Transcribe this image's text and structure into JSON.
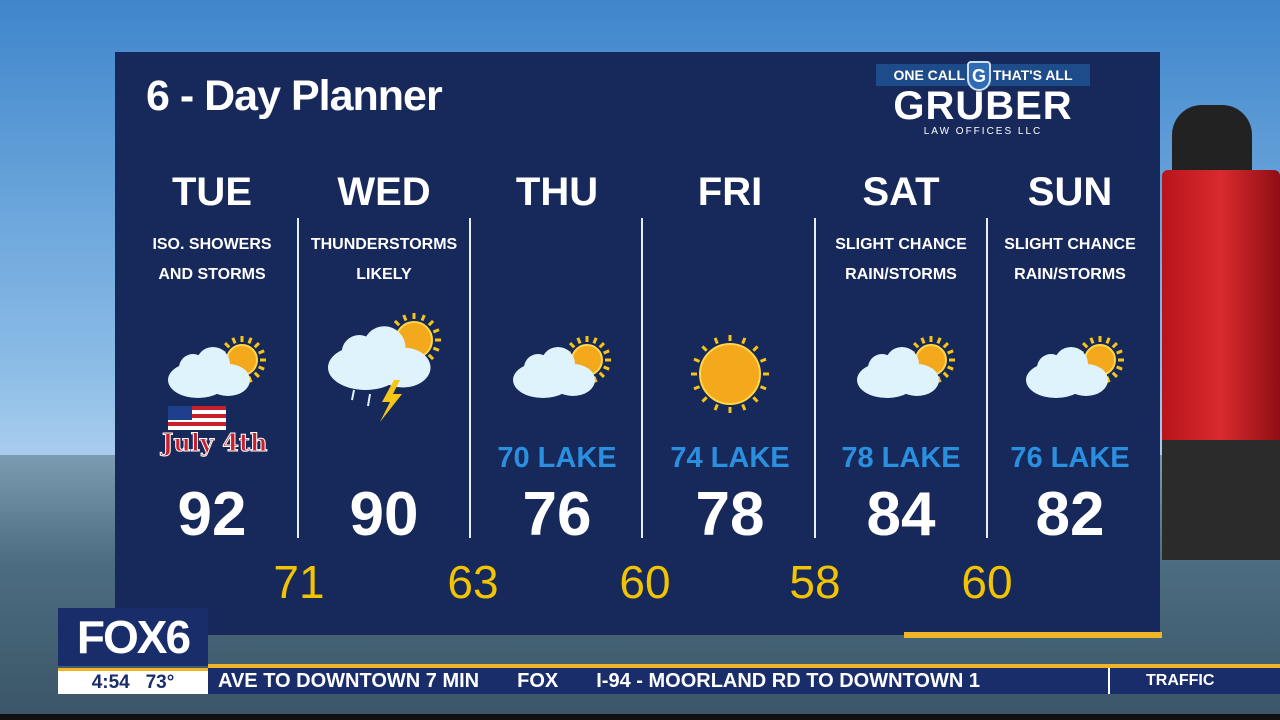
{
  "title": "6 - Day Planner",
  "sponsor": {
    "tagline_left": "ONE CALL",
    "shield_letter": "G",
    "tagline_right": "THAT'S ALL",
    "name": "GRUBER",
    "sub": "LAW OFFICES LLC"
  },
  "days": [
    {
      "day": "TUE",
      "cond1": "ISO. SHOWERS",
      "cond2": "AND STORMS",
      "icon": "partly-cloudy-icon",
      "badge": "July 4th",
      "high": "92"
    },
    {
      "day": "WED",
      "cond1": "THUNDERSTORMS",
      "cond2": "LIKELY",
      "icon": "thunderstorm-icon",
      "high": "90"
    },
    {
      "day": "THU",
      "cond1": "",
      "cond2": "",
      "icon": "partly-cloudy-icon",
      "lake": "70 LAKE",
      "high": "76"
    },
    {
      "day": "FRI",
      "cond1": "",
      "cond2": "",
      "icon": "sunny-icon",
      "lake": "74 LAKE",
      "high": "78"
    },
    {
      "day": "SAT",
      "cond1": "SLIGHT CHANCE",
      "cond2": "RAIN/STORMS",
      "icon": "partly-cloudy-icon",
      "lake": "78 LAKE",
      "high": "84"
    },
    {
      "day": "SUN",
      "cond1": "SLIGHT CHANCE",
      "cond2": "RAIN/STORMS",
      "icon": "partly-cloudy-icon",
      "lake": "76 LAKE",
      "high": "82"
    }
  ],
  "lows": [
    "71",
    "63",
    "60",
    "58",
    "60"
  ],
  "station": {
    "logo": "FOX6",
    "time": "4:54",
    "temp": "73°"
  },
  "ticker": {
    "item1": "AVE TO DOWNTOWN 7 MIN",
    "logo": "FOX",
    "item2": "I-94 - MOORLAND RD TO DOWNTOWN 1",
    "section": "TRAFFIC"
  },
  "colors": {
    "panel": "#17295a",
    "lake": "#2b8fe0",
    "low": "#f2c300",
    "accent": "#f0b429"
  }
}
